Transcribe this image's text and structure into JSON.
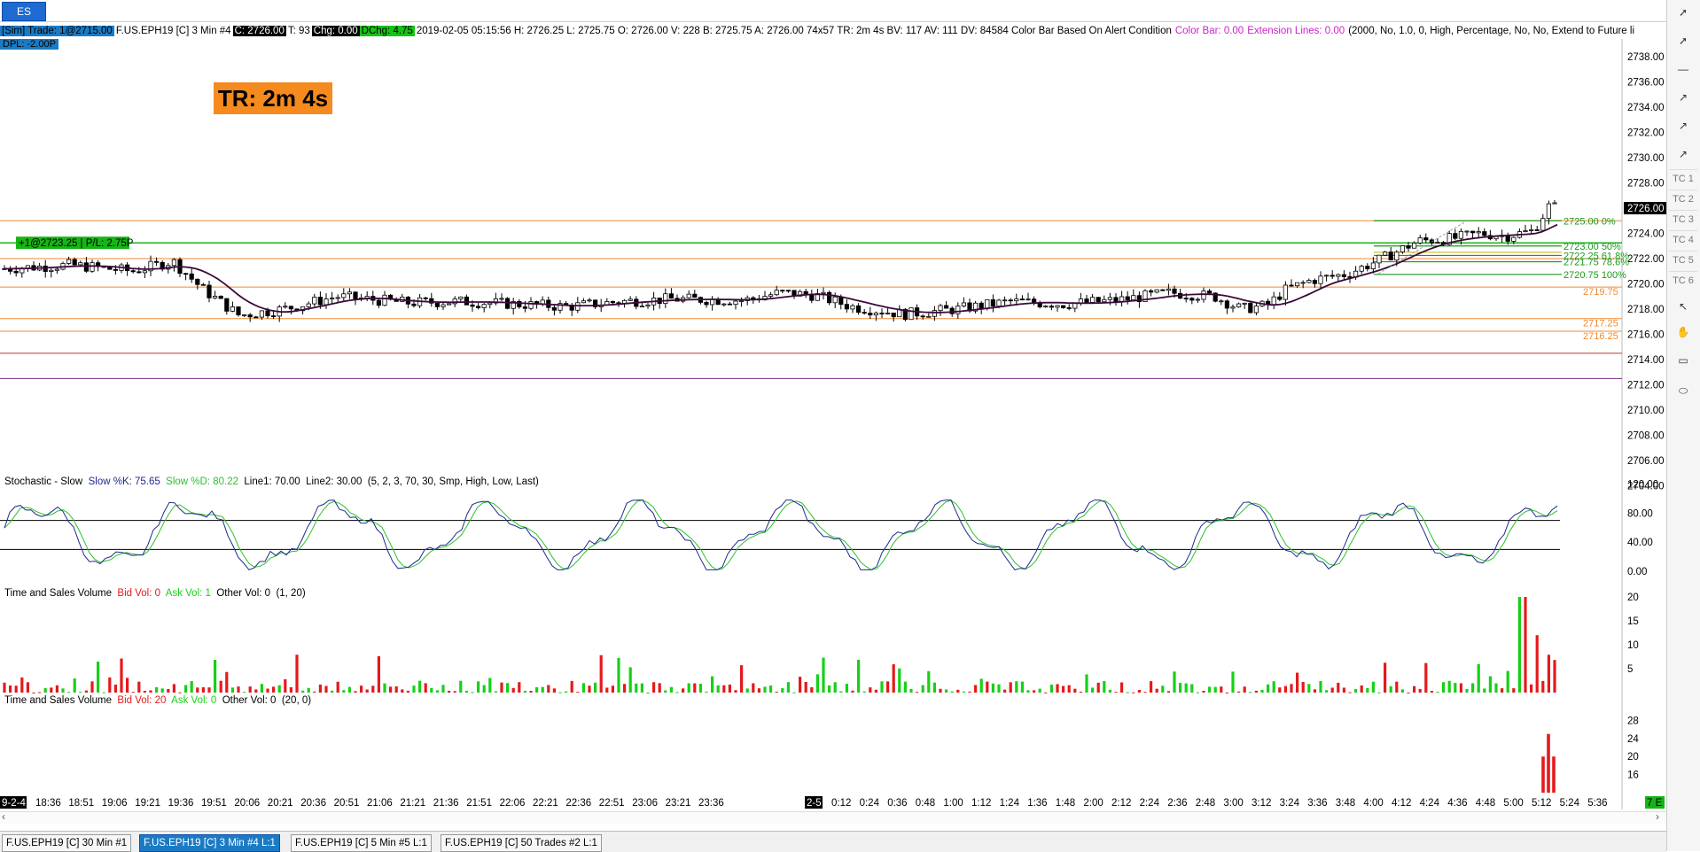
{
  "window": {
    "symbol_tab": "ES"
  },
  "status": {
    "sim_trade": "[Sim]  Trade: 1@2715.00",
    "instrument": "F.US.EPH19 [C]  3 Min   #4",
    "close": "C: 2726.00",
    "ticks": "T: 93",
    "chg": "Chg: 0.00",
    "dchg": "DChg: 4.75",
    "details": "2019-02-05 05:15:56 H: 2726.25 L: 2725.75 O: 2726.00 V: 228 B: 2725.75 A: 2726.00 74x57 TR: 2m 4s BV: 117 AV: 111 DV: 84584 Color Bar Based On Alert Condition",
    "color_bar": "Color Bar: 0.00",
    "ext_lines": "Extension Lines: 0.00",
    "params": "(2000, No, 1.0, 0, High, Percentage, No, No, Extend to Future li",
    "dpl": "DPL: -2.00P"
  },
  "timer_label": "TR: 2m 4s",
  "position_label": "+1@2723.25 | P/L: 2.75P",
  "price_axis": {
    "ticks": [
      "2738.00",
      "2736.00",
      "2734.00",
      "2732.00",
      "2730.00",
      "2728.00",
      "2726.00",
      "2724.00",
      "2722.00",
      "2720.00",
      "2718.00",
      "2716.00",
      "2714.00",
      "2712.00",
      "2710.00",
      "2708.00",
      "2706.00",
      "2704.00"
    ],
    "current": "2726.00"
  },
  "levels": {
    "fib": [
      "2725.00 0%",
      "2723.00 50%",
      "2722.25 61.8%",
      "2721.75 78.6%",
      "2720.75 100%"
    ],
    "orange": [
      "2725.00",
      "2719.75",
      "2717.25",
      "2716.25"
    ]
  },
  "stochastic": {
    "title": "Stochastic - Slow",
    "k": "Slow %K: 75.65",
    "d": "Slow %D: 80.22",
    "line1": "Line1: 70.00",
    "line2": "Line2: 30.00",
    "params": "(5, 2, 3, 70, 30, Smp, High, Low, Last)",
    "axis": [
      "120.00",
      "80.00",
      "40.00",
      "0.00"
    ]
  },
  "tsv1": {
    "title": "Time and Sales Volume",
    "bid": "Bid Vol: 0",
    "ask": "Ask Vol: 1",
    "other": "Other Vol: 0",
    "params": "(1, 20)",
    "axis": [
      "20",
      "15",
      "10",
      "5"
    ]
  },
  "tsv2": {
    "title": "Time and Sales Volume",
    "bid": "Bid Vol: 20",
    "ask": "Ask Vol: 0",
    "other": "Other Vol: 0",
    "params": "(20, 0)",
    "axis": [
      "28",
      "24",
      "20",
      "16"
    ]
  },
  "time_axis": {
    "day1": "9-2-4",
    "labels1": [
      "18:36",
      "18:51",
      "19:06",
      "19:21",
      "19:36",
      "19:51",
      "20:06",
      "20:21",
      "20:36",
      "20:51",
      "21:06",
      "21:21",
      "21:36",
      "21:51",
      "22:06",
      "22:21",
      "22:36",
      "22:51",
      "23:06",
      "23:21",
      "23:36"
    ],
    "day2": "2-5",
    "labels2": [
      "0:12",
      "0:24",
      "0:36",
      "0:48",
      "1:00",
      "1:12",
      "1:24",
      "1:36",
      "1:48",
      "2:00",
      "2:12",
      "2:24",
      "2:36",
      "2:48",
      "3:00",
      "3:12",
      "3:24",
      "3:36",
      "3:48",
      "4:00",
      "4:12",
      "4:24",
      "4:36",
      "4:48",
      "5:00",
      "5:12",
      "5:24",
      "5:36"
    ],
    "end_badge": "7 E"
  },
  "toolbar": {
    "tc": [
      "TC 1",
      "TC 2",
      "TC 3",
      "TC 4",
      "TC 5",
      "TC 6"
    ]
  },
  "bottom_tabs": [
    {
      "label": "F.US.EPH19 [C]  30 Min   #1",
      "active": false
    },
    {
      "label": "F.US.EPH19 [C]  3 Min   #4   L:1",
      "active": true
    },
    {
      "label": "F.US.EPH19 [C]  5 Min   #5   L:1",
      "active": false
    },
    {
      "label": "F.US.EPH19 [C]  50 Trades  #2   L:1",
      "active": false
    }
  ],
  "colors": {
    "bid": "#e41a1c",
    "ask": "#17d017",
    "fib": "#1a9a1a",
    "orange": "#f28a30",
    "ma": "#3a0a3a",
    "k": "#1e2a8a",
    "d": "#2ec02e"
  }
}
